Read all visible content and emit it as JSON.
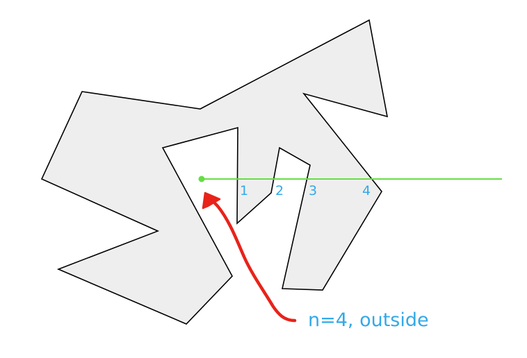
{
  "colors": {
    "polygon_fill": "#eeeeee",
    "polygon_stroke": "#000000",
    "ray": "#66dd44",
    "test_point": "#66dd44",
    "label_text": "#33a9e8",
    "arrow": "#e8231a"
  },
  "crossings": [
    {
      "label": "1"
    },
    {
      "label": "2"
    },
    {
      "label": "3"
    },
    {
      "label": "4"
    }
  ],
  "annotation": {
    "text": "n=4, outside"
  }
}
